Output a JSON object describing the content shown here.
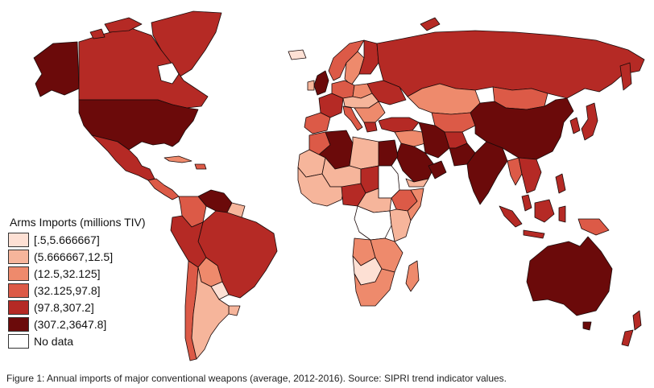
{
  "legend": {
    "title": "Arms Imports (millions TIV)",
    "items": [
      {
        "label": "[.5,5.666667]",
        "color": "#fde0d4"
      },
      {
        "label": "(5.666667,12.5]",
        "color": "#f6b59b"
      },
      {
        "label": "(12.5,32.125]",
        "color": "#ee8a6c"
      },
      {
        "label": "(32.125,97.8]",
        "color": "#dc5a47"
      },
      {
        "label": "(97.8,307.2]",
        "color": "#b52a25"
      },
      {
        "label": "(307.2,3647.8]",
        "color": "#6b0a0a"
      },
      {
        "label": "No data",
        "color": "#ffffff"
      }
    ]
  },
  "caption": "Figure 1: Annual imports of major conventional weapons (average, 2012-2016). Source: SIPRI trend indicator values."
}
